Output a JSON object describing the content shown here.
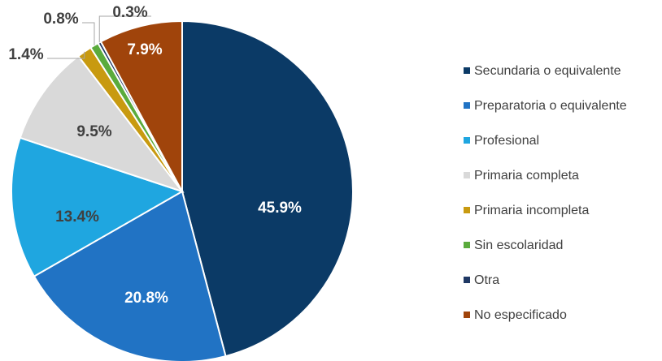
{
  "chart_data": {
    "type": "pie",
    "categories": [
      "Secundaria o equivalente",
      "Preparatoria o equivalente",
      "Profesional",
      "Primaria completa",
      "Primaria incompleta",
      "Sin escolaridad",
      "Otra",
      "No especificado"
    ],
    "values": [
      45.9,
      20.8,
      13.4,
      9.5,
      1.4,
      0.8,
      0.3,
      7.9
    ],
    "value_labels": [
      "45.9%",
      "20.8%",
      "13.4%",
      "9.5%",
      "1.4%",
      "0.8%",
      "0.3%",
      "7.9%"
    ],
    "colors": [
      "#0b3a66",
      "#2173c4",
      "#1fa6e0",
      "#d9d9d9",
      "#c89a10",
      "#5aab3c",
      "#1f3864",
      "#a0440b"
    ],
    "legend": "right"
  }
}
